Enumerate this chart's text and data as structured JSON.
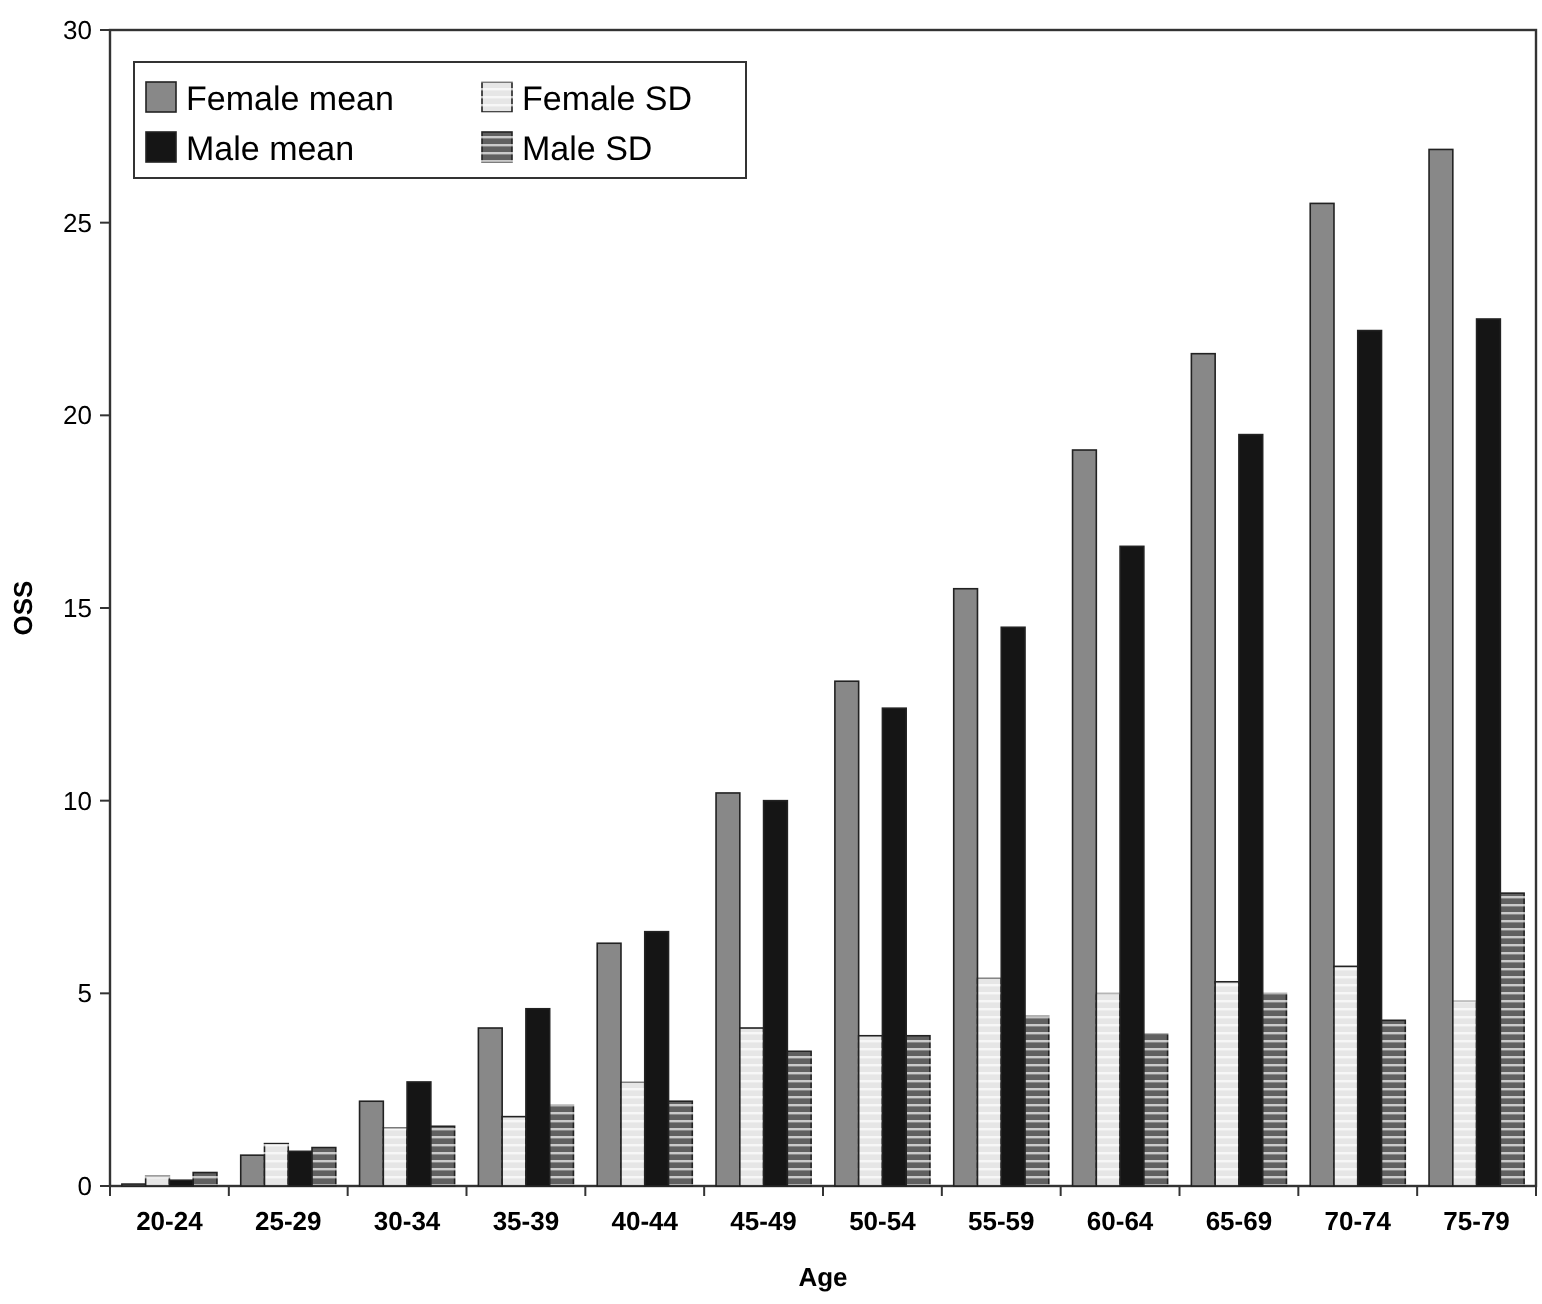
{
  "chart_data": {
    "type": "bar",
    "xlabel": "Age",
    "ylabel": "OSS",
    "categories": [
      "20-24",
      "25-29",
      "30-34",
      "35-39",
      "40-44",
      "45-49",
      "50-54",
      "55-59",
      "60-64",
      "65-69",
      "70-74",
      "75-79"
    ],
    "series": [
      {
        "name": "Female mean",
        "color": "#888888",
        "values": [
          0.05,
          0.8,
          2.2,
          4.1,
          6.3,
          10.2,
          13.1,
          15.5,
          19.1,
          21.6,
          25.5,
          26.9
        ]
      },
      {
        "name": "Female SD",
        "color": "#e6e6e6",
        "values": [
          0.25,
          1.1,
          1.5,
          1.8,
          2.7,
          4.1,
          3.9,
          5.4,
          5.0,
          5.3,
          5.7,
          4.8
        ]
      },
      {
        "name": "Male mean",
        "color": "#151515",
        "values": [
          0.15,
          0.9,
          2.7,
          4.6,
          6.6,
          10.0,
          12.4,
          14.5,
          16.6,
          19.5,
          22.2,
          22.5
        ]
      },
      {
        "name": "Male SD",
        "color": "#606060",
        "values": [
          0.35,
          1.0,
          1.55,
          2.1,
          2.2,
          3.5,
          3.9,
          4.4,
          3.95,
          5.0,
          4.3,
          7.6
        ]
      }
    ],
    "ylim": [
      0,
      30
    ],
    "yticks": [
      0,
      5,
      10,
      15,
      20,
      25,
      30
    ],
    "grid": false,
    "legend": "top left"
  }
}
